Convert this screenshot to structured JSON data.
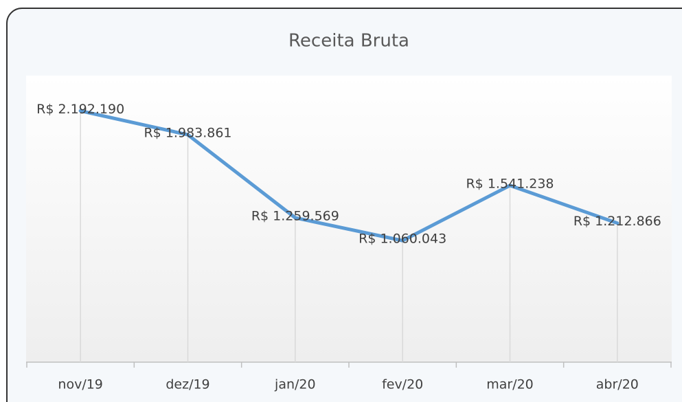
{
  "chart_data": {
    "type": "line",
    "title": "Receita  Bruta",
    "categories": [
      "nov/19",
      "dez/19",
      "jan/20",
      "fev/20",
      "mar/20",
      "abr/20"
    ],
    "values": [
      2192190,
      1983861,
      1259569,
      1060043,
      1541238,
      1212866
    ],
    "value_labels": [
      "R$ 2.192.190",
      "R$ 1.983.861",
      "R$ 1.259.569",
      "R$ 1.060.043",
      "R$ 1.541.238",
      "R$ 1.212.866"
    ],
    "color": "#5b9bd5",
    "ylim": [
      0,
      2500000
    ]
  }
}
